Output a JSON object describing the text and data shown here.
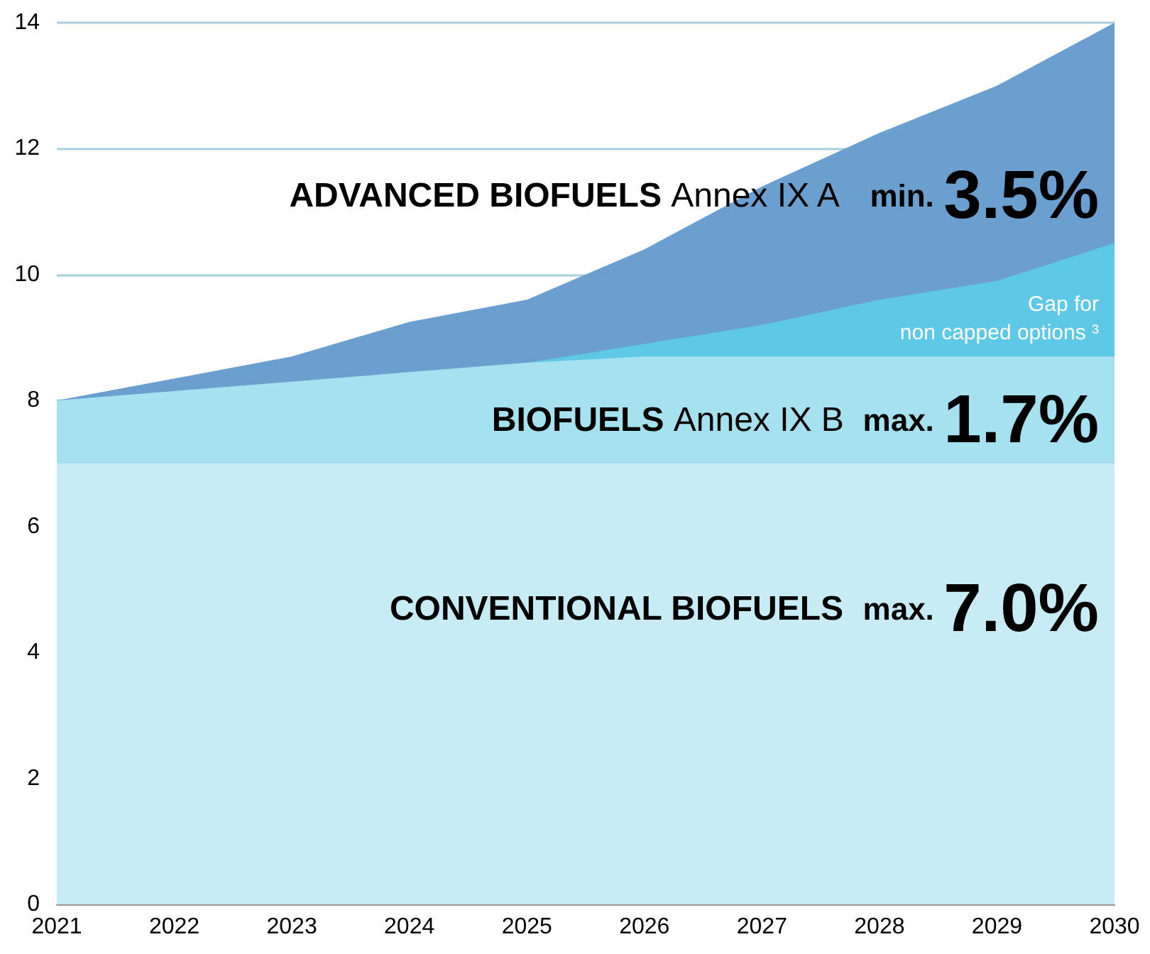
{
  "chart_data": {
    "type": "area",
    "stacked": true,
    "x": [
      2021,
      2022,
      2023,
      2024,
      2025,
      2026,
      2027,
      2028,
      2029,
      2030
    ],
    "series": [
      {
        "color": "#c8ecf5",
        "values": [
          7,
          7,
          7,
          7,
          7,
          7,
          7,
          7,
          7,
          7
        ]
      },
      {
        "color": "#a6e1f0",
        "values": [
          1,
          1.15,
          1.3,
          1.45,
          1.6,
          1.7,
          1.7,
          1.7,
          1.7,
          1.7
        ]
      },
      {
        "color": "#5ec9e6",
        "values": [
          0,
          0,
          0,
          0,
          0,
          0.2,
          0.5,
          0.9,
          1.2,
          1.8
        ]
      },
      {
        "color": "#6a9fd0",
        "values": [
          0,
          0.2,
          0.4,
          0.8,
          1,
          1.5,
          2.2,
          2.65,
          3.1,
          3.5
        ]
      }
    ],
    "xlim": [
      2021,
      2030
    ],
    "xticks": [
      2021,
      2022,
      2023,
      2024,
      2025,
      2026,
      2027,
      2028,
      2029,
      2030
    ],
    "ylim": [
      0,
      14
    ],
    "yticks": [
      0,
      2,
      4,
      6,
      8,
      10,
      12,
      14
    ],
    "grid": "y",
    "annotations": [
      "ADVANCED BIOFUELS",
      "Annex IX A",
      "min.",
      "3.5%",
      "BIOFUELS",
      "Annex IX B",
      "max.",
      "1.7%",
      "CONVENTIONAL BIOFUELS",
      "max.",
      "7.0%",
      "Gap for",
      "non capped options ³"
    ]
  }
}
